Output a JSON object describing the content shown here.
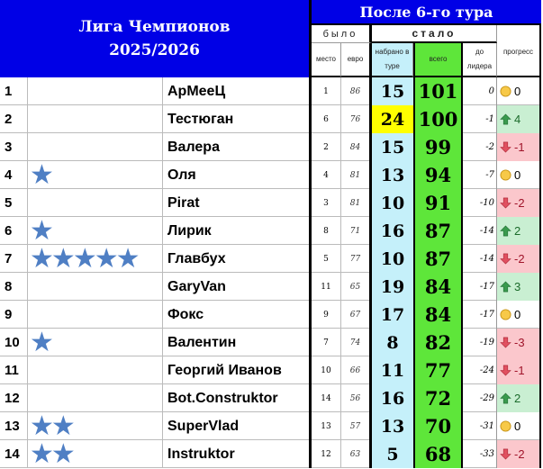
{
  "header": {
    "title_line1": "Лига Чемпионов",
    "title_line2": "2025/2026",
    "round": "После 6-го тура",
    "was": "было",
    "now": "стало",
    "col_place": "место",
    "col_euro": "евро",
    "col_tour": "набрано в туре",
    "col_total": "всего",
    "col_leader": "до лидера",
    "col_progress": "прогресс"
  },
  "colors": {
    "header_blue": "#0000e6",
    "tour_bg": "#c5f0fa",
    "total_bg": "#5ee63a",
    "highlight": "#ffff00",
    "up_bg": "#c9efd2",
    "down_bg": "#fbc7cc"
  },
  "rows": [
    {
      "rank": "1",
      "stars": 0,
      "name": "АрМееЦ",
      "place": "1",
      "euro": "86",
      "tour": "15",
      "total": "101",
      "leader": "0",
      "trend": "same",
      "progress": "0"
    },
    {
      "rank": "2",
      "stars": 0,
      "name": "Тестюган",
      "place": "6",
      "euro": "76",
      "tour": "24",
      "total": "100",
      "leader": "-1",
      "trend": "up",
      "progress": "4",
      "highlight": true
    },
    {
      "rank": "3",
      "stars": 0,
      "name": "Валера",
      "place": "2",
      "euro": "84",
      "tour": "15",
      "total": "99",
      "leader": "-2",
      "trend": "down",
      "progress": "-1"
    },
    {
      "rank": "4",
      "stars": 1,
      "name": "Оля",
      "place": "4",
      "euro": "81",
      "tour": "13",
      "total": "94",
      "leader": "-7",
      "trend": "same",
      "progress": "0"
    },
    {
      "rank": "5",
      "stars": 0,
      "name": "Pirat",
      "place": "3",
      "euro": "81",
      "tour": "10",
      "total": "91",
      "leader": "-10",
      "trend": "down",
      "progress": "-2"
    },
    {
      "rank": "6",
      "stars": 1,
      "name": "Лирик",
      "place": "8",
      "euro": "71",
      "tour": "16",
      "total": "87",
      "leader": "-14",
      "trend": "up",
      "progress": "2"
    },
    {
      "rank": "7",
      "stars": 5,
      "name": "Главбух",
      "place": "5",
      "euro": "77",
      "tour": "10",
      "total": "87",
      "leader": "-14",
      "trend": "down",
      "progress": "-2"
    },
    {
      "rank": "8",
      "stars": 0,
      "name": "GaryVan",
      "place": "11",
      "euro": "65",
      "tour": "19",
      "total": "84",
      "leader": "-17",
      "trend": "up",
      "progress": "3"
    },
    {
      "rank": "9",
      "stars": 0,
      "name": "Фокс",
      "place": "9",
      "euro": "67",
      "tour": "17",
      "total": "84",
      "leader": "-17",
      "trend": "same",
      "progress": "0"
    },
    {
      "rank": "10",
      "stars": 1,
      "name": "Валентин",
      "place": "7",
      "euro": "74",
      "tour": "8",
      "total": "82",
      "leader": "-19",
      "trend": "down",
      "progress": "-3"
    },
    {
      "rank": "11",
      "stars": 0,
      "name": "Георгий Иванов",
      "place": "10",
      "euro": "66",
      "tour": "11",
      "total": "77",
      "leader": "-24",
      "trend": "down",
      "progress": "-1"
    },
    {
      "rank": "12",
      "stars": 0,
      "name": "Bot.Construktor",
      "place": "14",
      "euro": "56",
      "tour": "16",
      "total": "72",
      "leader": "-29",
      "trend": "up",
      "progress": "2"
    },
    {
      "rank": "13",
      "stars": 2,
      "name": "SuperVlad",
      "place": "13",
      "euro": "57",
      "tour": "13",
      "total": "70",
      "leader": "-31",
      "trend": "same",
      "progress": "0"
    },
    {
      "rank": "14",
      "stars": 2,
      "name": "Instruktor",
      "place": "12",
      "euro": "63",
      "tour": "5",
      "total": "68",
      "leader": "-33",
      "trend": "down",
      "progress": "-2"
    }
  ]
}
